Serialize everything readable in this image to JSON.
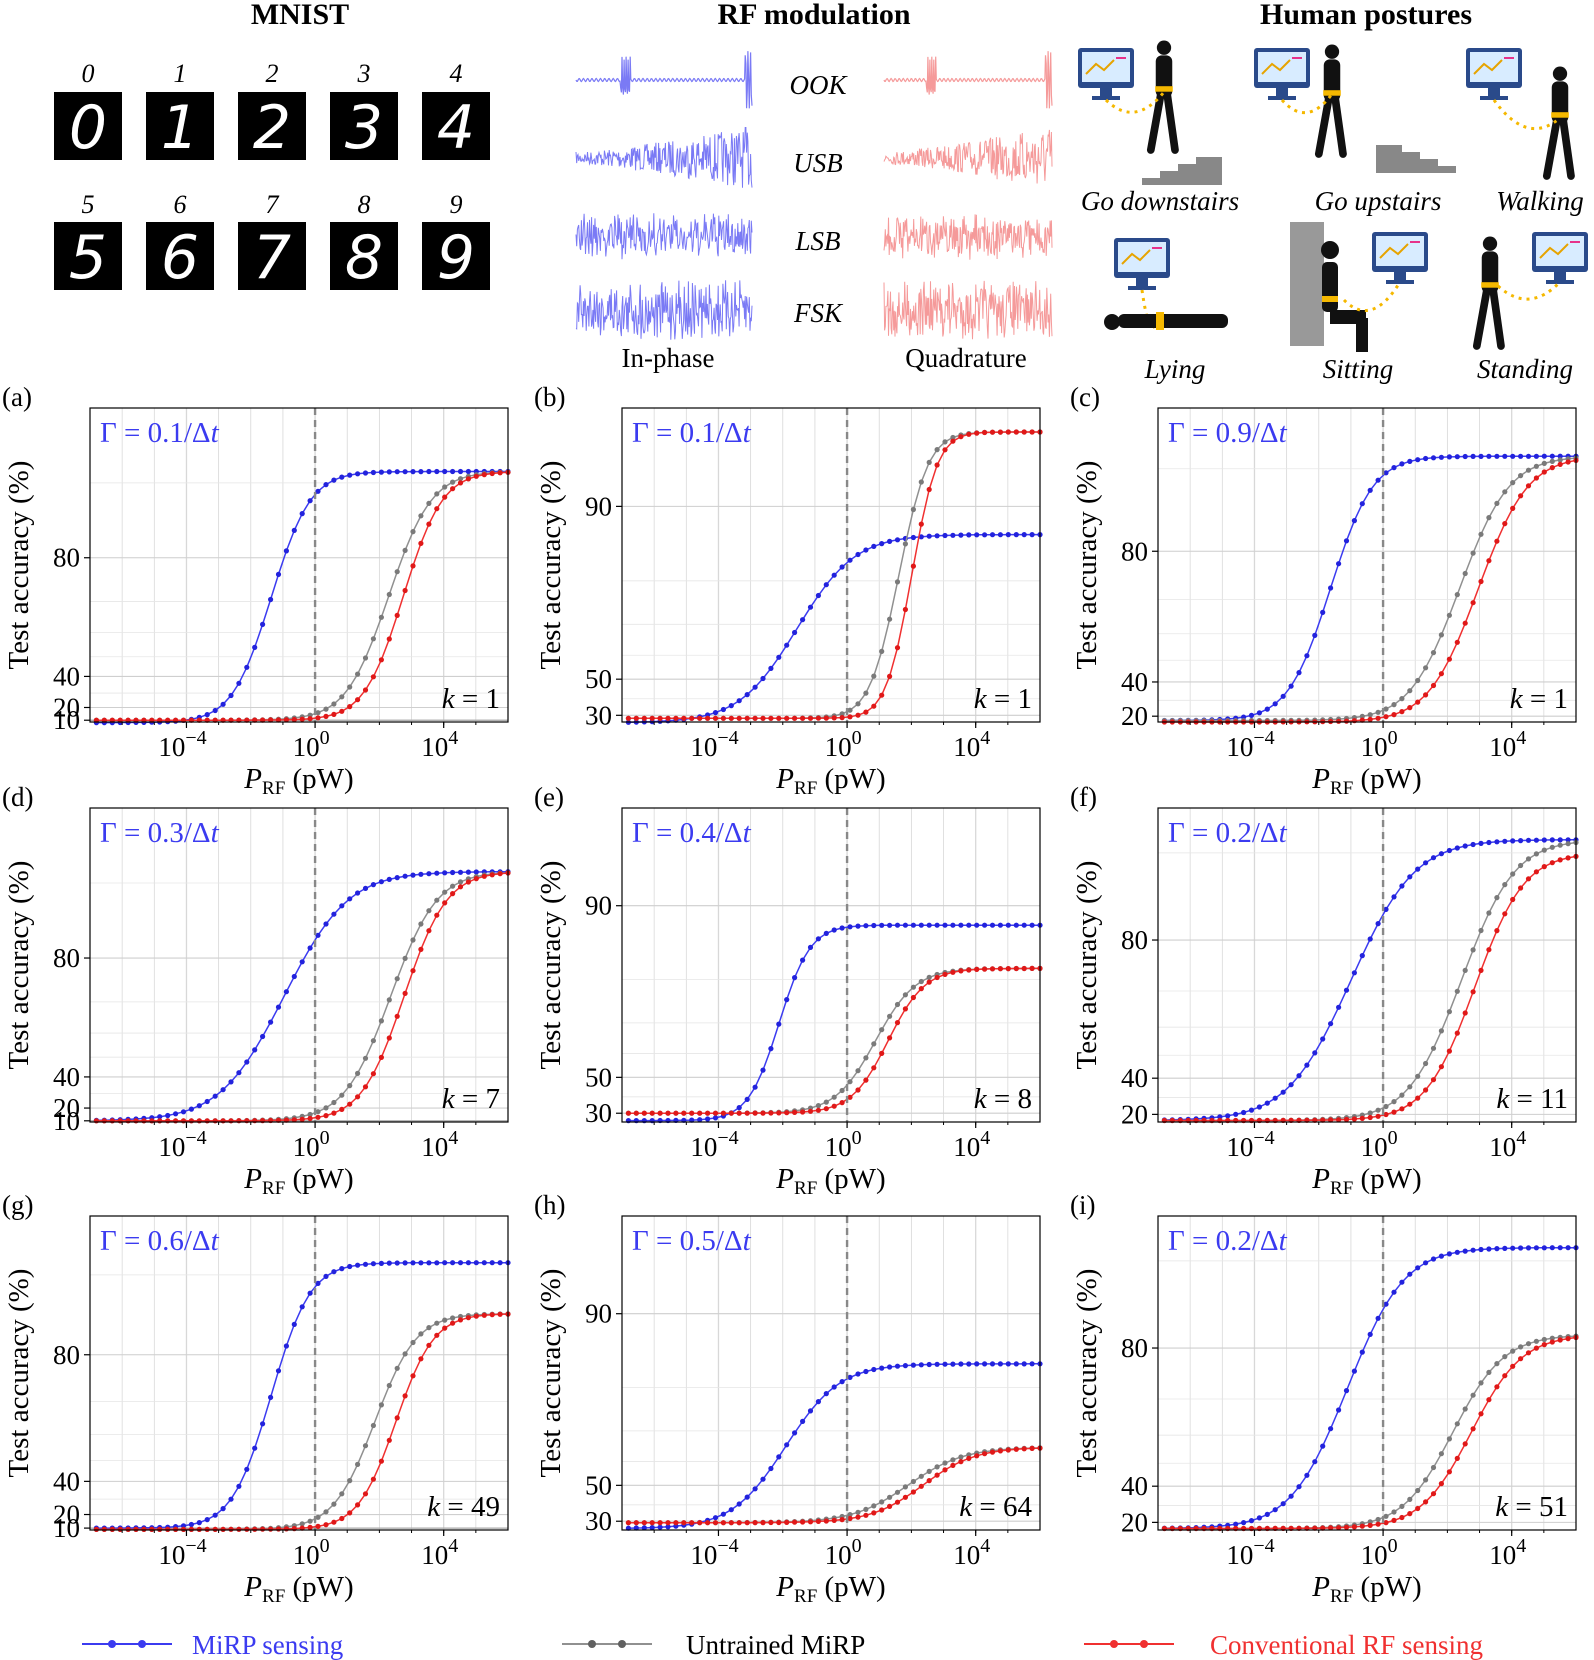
{
  "colors": {
    "mirp": "#3b3bf0",
    "untrained": "#909090",
    "conventional": "#f03030",
    "grid": "#d8d8d8"
  },
  "header": {
    "mnist": {
      "title": "MNIST",
      "digits": [
        "0",
        "1",
        "2",
        "3",
        "4",
        "5",
        "6",
        "7",
        "8",
        "9"
      ]
    },
    "rf": {
      "title": "RF modulation",
      "schemes": [
        "OOK",
        "USB",
        "LSB",
        "FSK"
      ],
      "inphase_label": "In-phase",
      "quadrature_label": "Quadrature"
    },
    "postures": {
      "title": "Human postures",
      "labels": [
        "Go downstairs",
        "Go upstairs",
        "Walking",
        "Lying",
        "Sitting",
        "Standing"
      ]
    }
  },
  "legend": [
    "MiRP sensing",
    "Untrained MiRP",
    "Conventional RF sensing"
  ],
  "chart_data": [
    {
      "panel": "(a)",
      "type": "line",
      "dataset": "MNIST",
      "gamma": "Γ = 0.1/Δt",
      "k": "k = 1",
      "xlabel": "P_RF (pW)",
      "ylabel": "Test accuracy (%)",
      "xscale": "log",
      "xlim": [
        1e-07,
        1000000.0
      ],
      "ylim": [
        8.5,
        95
      ],
      "yscale": "accuracy-transformed",
      "yticks": [
        10,
        20,
        40,
        80
      ],
      "xticks": [
        "10^-4",
        "10^0",
        "10^4"
      ],
      "vline": 1,
      "hline": 10,
      "series": [
        {
          "name": "MiRP sensing",
          "low": 8,
          "high": 91,
          "x0": 0.01,
          "w": 0.55
        },
        {
          "name": "Untrained MiRP",
          "low": 10,
          "high": 91,
          "x0": 40,
          "w": 0.6
        },
        {
          "name": "Conventional RF sensing",
          "low": 10,
          "high": 91,
          "x0": 130,
          "w": 0.55
        }
      ]
    },
    {
      "panel": "(b)",
      "type": "line",
      "dataset": "RF modulation",
      "gamma": "Γ = 0.1/Δt",
      "k": "k = 1",
      "xlabel": "P_RF (pW)",
      "ylabel": "Test accuracy (%)",
      "xscale": "log",
      "xlim": [
        1e-07,
        1000000.0
      ],
      "ylim": [
        25.5,
        96
      ],
      "yscale": "accuracy-transformed",
      "yticks": [
        30,
        50,
        90
      ],
      "xticks": [
        "10^-4",
        "10^0",
        "10^4"
      ],
      "vline": 1,
      "series": [
        {
          "name": "MiRP sensing",
          "low": 25,
          "high": 87,
          "x0": 0.005,
          "w": 0.85
        },
        {
          "name": "Untrained MiRP",
          "low": 28,
          "high": 95,
          "x0": 12,
          "w": 0.4
        },
        {
          "name": "Conventional RF sensing",
          "low": 28,
          "high": 95,
          "x0": 35,
          "w": 0.35
        }
      ]
    },
    {
      "panel": "(c)",
      "type": "line",
      "dataset": "Human postures",
      "gamma": "Γ = 0.9/Δt",
      "k": "k = 1",
      "xlabel": "P_RF (pW)",
      "ylabel": "Test accuracy (%)",
      "xscale": "log",
      "xlim": [
        1e-07,
        1000000.0
      ],
      "ylim": [
        16,
        94
      ],
      "yscale": "accuracy-transformed",
      "yticks": [
        20,
        40,
        80
      ],
      "xticks": [
        "10^-4",
        "10^0",
        "10^4"
      ],
      "vline": 1,
      "series": [
        {
          "name": "MiRP sensing",
          "low": 17,
          "high": 91,
          "x0": 0.005,
          "w": 0.6
        },
        {
          "name": "Untrained MiRP",
          "low": 17,
          "high": 91,
          "x0": 40,
          "w": 0.7
        },
        {
          "name": "Conventional RF sensing",
          "low": 16,
          "high": 91,
          "x0": 150,
          "w": 0.7
        }
      ]
    },
    {
      "panel": "(d)",
      "type": "line",
      "dataset": "MNIST",
      "gamma": "Γ = 0.3/Δt",
      "k": "k = 7",
      "xlabel": "P_RF (pW)",
      "ylabel": "Test accuracy (%)",
      "xscale": "log",
      "xlim": [
        1e-07,
        1000000.0
      ],
      "ylim": [
        9,
        95
      ],
      "yscale": "accuracy-transformed",
      "yticks": [
        10,
        20,
        40,
        80
      ],
      "xticks": [
        "10^-4",
        "10^0",
        "10^4"
      ],
      "vline": 1,
      "hline": 10,
      "series": [
        {
          "name": "MiRP sensing",
          "low": 10,
          "high": 91,
          "x0": 0.01,
          "w": 0.9
        },
        {
          "name": "Untrained MiRP",
          "low": 10,
          "high": 91,
          "x0": 40,
          "w": 0.65
        },
        {
          "name": "Conventional RF sensing",
          "low": 10,
          "high": 91,
          "x0": 120,
          "w": 0.6
        }
      ]
    },
    {
      "panel": "(e)",
      "type": "line",
      "dataset": "RF modulation",
      "gamma": "Γ = 0.4/Δt",
      "k": "k = 8",
      "xlabel": "P_RF (pW)",
      "ylabel": "Test accuracy (%)",
      "xscale": "log",
      "xlim": [
        1e-07,
        1000000.0
      ],
      "ylim": [
        24,
        96
      ],
      "yscale": "accuracy-transformed",
      "yticks": [
        30,
        50,
        90
      ],
      "xticks": [
        "10^-4",
        "10^0",
        "10^4"
      ],
      "vline": 1,
      "series": [
        {
          "name": "MiRP sensing",
          "low": 25,
          "high": 88,
          "x0": 0.003,
          "w": 0.45
        },
        {
          "name": "Untrained MiRP",
          "low": 30,
          "high": 82,
          "x0": 3,
          "w": 0.6
        },
        {
          "name": "Conventional RF sensing",
          "low": 30,
          "high": 82,
          "x0": 8,
          "w": 0.55
        }
      ]
    },
    {
      "panel": "(f)",
      "type": "line",
      "dataset": "Human postures",
      "gamma": "Γ = 0.2/Δt",
      "k": "k = 11",
      "xlabel": "P_RF (pW)",
      "ylabel": "Test accuracy (%)",
      "xscale": "log",
      "xlim": [
        1e-07,
        1000000.0
      ],
      "ylim": [
        15,
        93
      ],
      "yscale": "accuracy-transformed",
      "yticks": [
        20,
        40,
        80
      ],
      "xticks": [
        "10^-4",
        "10^0",
        "10^4"
      ],
      "vline": 1,
      "series": [
        {
          "name": "MiRP sensing",
          "low": 16,
          "high": 91,
          "x0": 0.01,
          "w": 0.9
        },
        {
          "name": "Untrained MiRP",
          "low": 16,
          "high": 91,
          "x0": 40,
          "w": 0.75
        },
        {
          "name": "Conventional RF sensing",
          "low": 16,
          "high": 90,
          "x0": 130,
          "w": 0.7
        }
      ]
    },
    {
      "panel": "(g)",
      "type": "line",
      "dataset": "MNIST",
      "gamma": "Γ = 0.6/Δt",
      "k": "k = 49",
      "xlabel": "P_RF (pW)",
      "ylabel": "Test accuracy (%)",
      "xscale": "log",
      "xlim": [
        1e-07,
        1000000.0
      ],
      "ylim": [
        8.5,
        94
      ],
      "yscale": "accuracy-transformed",
      "yticks": [
        10,
        20,
        40,
        80
      ],
      "xticks": [
        "10^-4",
        "10^0",
        "10^4"
      ],
      "vline": 1,
      "hline": 10,
      "series": [
        {
          "name": "MiRP sensing",
          "low": 10,
          "high": 91,
          "x0": 0.01,
          "w": 0.55
        },
        {
          "name": "Untrained MiRP",
          "low": 9,
          "high": 86,
          "x0": 20,
          "w": 0.6
        },
        {
          "name": "Conventional RF sensing",
          "low": 9,
          "high": 86,
          "x0": 100,
          "w": 0.55
        }
      ]
    },
    {
      "panel": "(h)",
      "type": "line",
      "dataset": "RF modulation",
      "gamma": "Γ = 0.5/Δt",
      "k": "k = 64",
      "xlabel": "P_RF (pW)",
      "ylabel": "Test accuracy (%)",
      "xscale": "log",
      "xlim": [
        1e-07,
        1000000.0
      ],
      "ylim": [
        24,
        96
      ],
      "yscale": "accuracy-transformed",
      "yticks": [
        30,
        50,
        90
      ],
      "xticks": [
        "10^-4",
        "10^0",
        "10^4"
      ],
      "vline": 1,
      "series": [
        {
          "name": "MiRP sensing",
          "low": 25,
          "high": 84,
          "x0": 0.003,
          "w": 0.8
        },
        {
          "name": "Untrained MiRP",
          "low": 29,
          "high": 65,
          "x0": 40,
          "w": 0.85
        },
        {
          "name": "Conventional RF sensing",
          "low": 29,
          "high": 65,
          "x0": 120,
          "w": 0.8
        }
      ]
    },
    {
      "panel": "(i)",
      "type": "line",
      "dataset": "Human postures",
      "gamma": "Γ = 0.2/Δt",
      "k": "k = 51",
      "xlabel": "P_RF (pW)",
      "ylabel": "Test accuracy (%)",
      "xscale": "log",
      "xlim": [
        1e-07,
        1000000.0
      ],
      "ylim": [
        15,
        93
      ],
      "yscale": "accuracy-transformed",
      "yticks": [
        20,
        40,
        80
      ],
      "xticks": [
        "10^-4",
        "10^0",
        "10^4"
      ],
      "vline": 1,
      "series": [
        {
          "name": "MiRP sensing",
          "low": 16,
          "high": 91,
          "x0": 0.01,
          "w": 0.8
        },
        {
          "name": "Untrained MiRP",
          "low": 16,
          "high": 82,
          "x0": 40,
          "w": 0.75
        },
        {
          "name": "Conventional RF sensing",
          "low": 16,
          "high": 82,
          "x0": 150,
          "w": 0.75
        }
      ]
    }
  ]
}
